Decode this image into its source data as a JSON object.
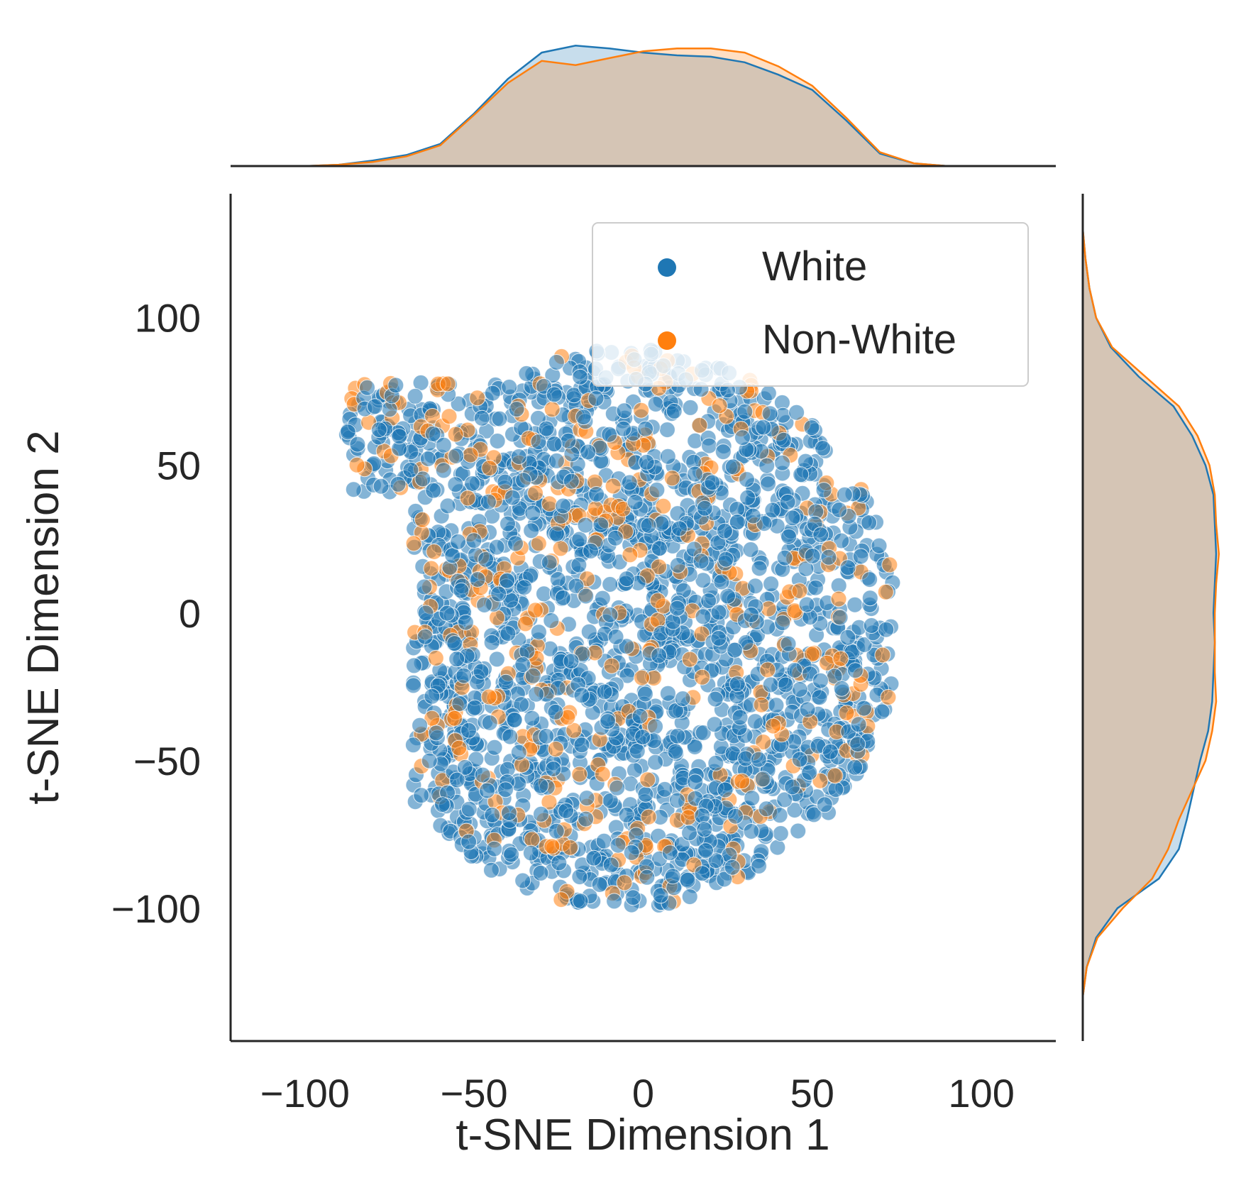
{
  "chart_data": {
    "type": "scatter",
    "title": "",
    "xlabel": "t-SNE Dimension 1",
    "ylabel": "t-SNE Dimension 2",
    "xlim": [
      -122,
      122
    ],
    "ylim": [
      -145,
      142
    ],
    "x_ticks": [
      -100,
      -50,
      0,
      50,
      100
    ],
    "y_ticks": [
      -100,
      -50,
      0,
      50,
      100
    ],
    "x_tick_labels": [
      "−100",
      "−50",
      "0",
      "50",
      "100"
    ],
    "y_tick_labels": [
      "−100",
      "−50",
      "0",
      "50",
      "100"
    ],
    "grid": false,
    "legend_position": "top-right",
    "marginals": "kde on top (x) and right (y) per series, shaded",
    "series": [
      {
        "name": "White",
        "color": "#1f77b4",
        "point_alpha": 0.55,
        "cluster_shape": "dense blob spanning x -85 to 75, y -100 to 92, with a tail at upper-left near (-85, 50)",
        "kde_x": [
          [
            -100,
            0
          ],
          [
            -90,
            0.01
          ],
          [
            -80,
            0.04
          ],
          [
            -70,
            0.08
          ],
          [
            -60,
            0.16
          ],
          [
            -50,
            0.38
          ],
          [
            -40,
            0.63
          ],
          [
            -30,
            0.82
          ],
          [
            -20,
            0.87
          ],
          [
            -10,
            0.85
          ],
          [
            0,
            0.82
          ],
          [
            10,
            0.8
          ],
          [
            20,
            0.79
          ],
          [
            30,
            0.75
          ],
          [
            40,
            0.66
          ],
          [
            50,
            0.55
          ],
          [
            60,
            0.33
          ],
          [
            70,
            0.09
          ],
          [
            80,
            0.02
          ],
          [
            90,
            0
          ]
        ],
        "kde_y": [
          [
            -130,
            0
          ],
          [
            -120,
            0.03
          ],
          [
            -110,
            0.1
          ],
          [
            -100,
            0.26
          ],
          [
            -90,
            0.57
          ],
          [
            -80,
            0.72
          ],
          [
            -70,
            0.78
          ],
          [
            -60,
            0.83
          ],
          [
            -50,
            0.88
          ],
          [
            -40,
            0.94
          ],
          [
            -30,
            0.97
          ],
          [
            -20,
            0.98
          ],
          [
            -10,
            0.99
          ],
          [
            0,
            0.98
          ],
          [
            10,
            0.99
          ],
          [
            20,
            1.0
          ],
          [
            30,
            0.99
          ],
          [
            40,
            0.98
          ],
          [
            50,
            0.92
          ],
          [
            60,
            0.82
          ],
          [
            70,
            0.68
          ],
          [
            80,
            0.42
          ],
          [
            90,
            0.21
          ],
          [
            100,
            0.1
          ],
          [
            110,
            0.05
          ],
          [
            120,
            0.02
          ],
          [
            130,
            0
          ]
        ]
      },
      {
        "name": "Non-White",
        "color": "#ff7f0e",
        "point_alpha": 0.55,
        "cluster_shape": "interspersed within the same blob, x -70 to 70, y -95 to 90",
        "kde_x": [
          [
            -100,
            0
          ],
          [
            -90,
            0.01
          ],
          [
            -80,
            0.03
          ],
          [
            -70,
            0.07
          ],
          [
            -60,
            0.15
          ],
          [
            -50,
            0.37
          ],
          [
            -40,
            0.6
          ],
          [
            -30,
            0.76
          ],
          [
            -20,
            0.73
          ],
          [
            -10,
            0.78
          ],
          [
            0,
            0.83
          ],
          [
            10,
            0.85
          ],
          [
            20,
            0.85
          ],
          [
            30,
            0.82
          ],
          [
            40,
            0.72
          ],
          [
            50,
            0.58
          ],
          [
            60,
            0.35
          ],
          [
            70,
            0.1
          ],
          [
            80,
            0.02
          ],
          [
            90,
            0
          ]
        ],
        "kde_y": [
          [
            -130,
            0
          ],
          [
            -120,
            0.03
          ],
          [
            -110,
            0.11
          ],
          [
            -100,
            0.3
          ],
          [
            -90,
            0.52
          ],
          [
            -80,
            0.64
          ],
          [
            -70,
            0.72
          ],
          [
            -60,
            0.82
          ],
          [
            -50,
            0.92
          ],
          [
            -40,
            0.97
          ],
          [
            -30,
            1.0
          ],
          [
            -20,
            0.99
          ],
          [
            -10,
            0.99
          ],
          [
            0,
            0.99
          ],
          [
            10,
            1.0
          ],
          [
            20,
            1.02
          ],
          [
            30,
            1.0
          ],
          [
            40,
            0.99
          ],
          [
            50,
            0.95
          ],
          [
            60,
            0.86
          ],
          [
            70,
            0.72
          ],
          [
            80,
            0.47
          ],
          [
            90,
            0.22
          ],
          [
            100,
            0.1
          ],
          [
            110,
            0.05
          ],
          [
            120,
            0.02
          ],
          [
            130,
            0
          ]
        ]
      }
    ]
  }
}
